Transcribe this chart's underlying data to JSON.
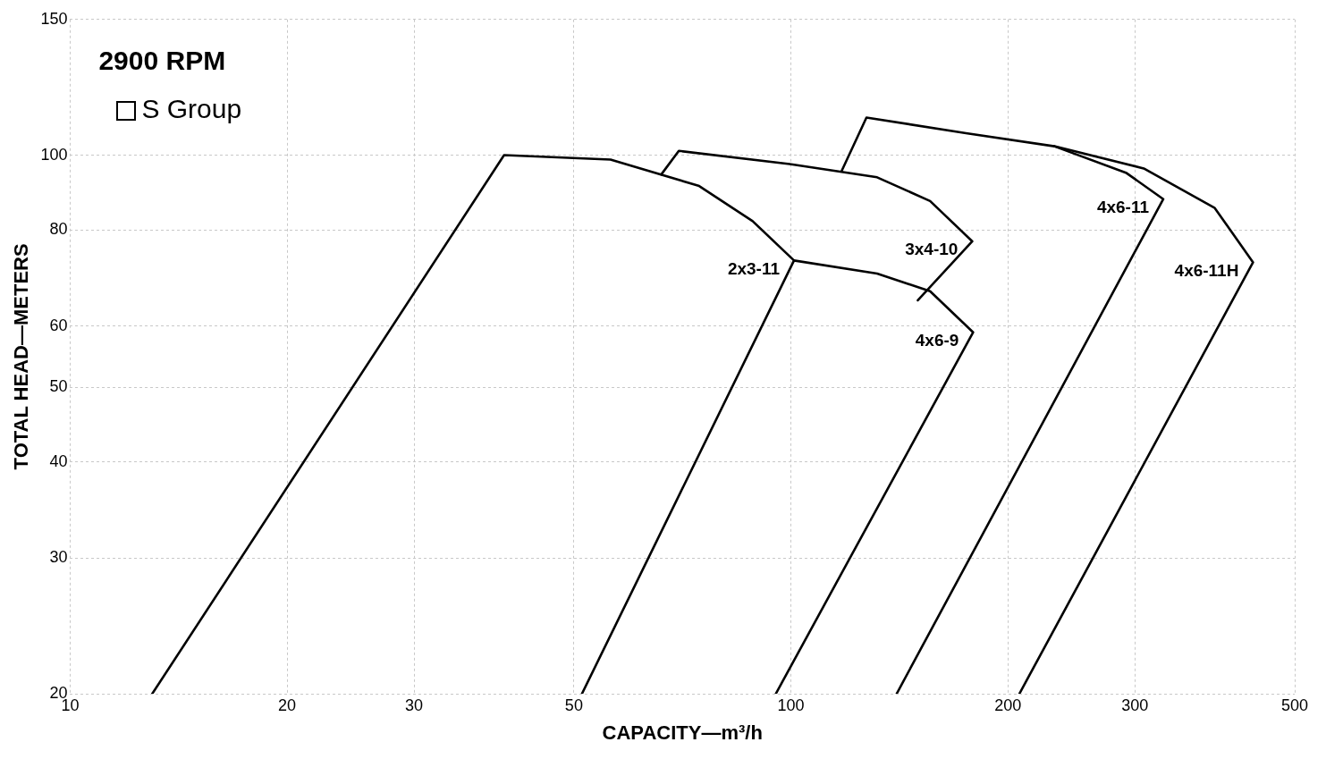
{
  "chart_data": {
    "type": "line",
    "title": "2900 RPM",
    "subtitle": "S Group",
    "xlabel": "CAPACITY—m³/h",
    "ylabel": "TOTAL HEAD—METERS",
    "log": "xy",
    "grid": true,
    "legend": false,
    "marker": "none",
    "line_style": "solid",
    "xlim": [
      10,
      500
    ],
    "xticks": [
      10,
      20,
      30,
      50,
      100,
      200,
      300,
      500
    ],
    "ylim": [
      20,
      150
    ],
    "yticks": [
      20,
      30,
      40,
      50,
      60,
      80,
      100,
      150
    ],
    "series": [
      {
        "name": "2x3-11",
        "color": "#000000",
        "x": [
          13,
          40,
          56.2,
          74.6,
          88.5,
          101,
          51.3
        ],
        "values": [
          20,
          100,
          98.7,
          91.2,
          82.1,
          73,
          20
        ]
      },
      {
        "name": "3x4-10",
        "color": "#000000",
        "x": [
          66.1,
          69.9,
          99.6,
          131.7,
          156,
          178.5,
          150
        ],
        "values": [
          94.4,
          101.3,
          97.4,
          93.6,
          87.2,
          77.3,
          64.8
        ]
      },
      {
        "name": "4x6-9",
        "color": "#000000",
        "x": [
          101,
          131.7,
          156,
          179,
          95.3
        ],
        "values": [
          73,
          70.2,
          66.6,
          58.9,
          20
        ]
      },
      {
        "name": "4x6-11",
        "color": "#000000",
        "x": [
          117.6,
          127.3,
          175,
          232,
          291.6,
          328.6,
          140.2
        ],
        "values": [
          95.4,
          111.9,
          106.8,
          102.7,
          94.9,
          87.7,
          20
        ]
      },
      {
        "name": "4x6-11H",
        "color": "#000000",
        "x": [
          232,
          308.7,
          387.3,
          437.7,
          207.5
        ],
        "values": [
          102.7,
          96.1,
          85.4,
          72.6,
          20
        ]
      }
    ]
  }
}
